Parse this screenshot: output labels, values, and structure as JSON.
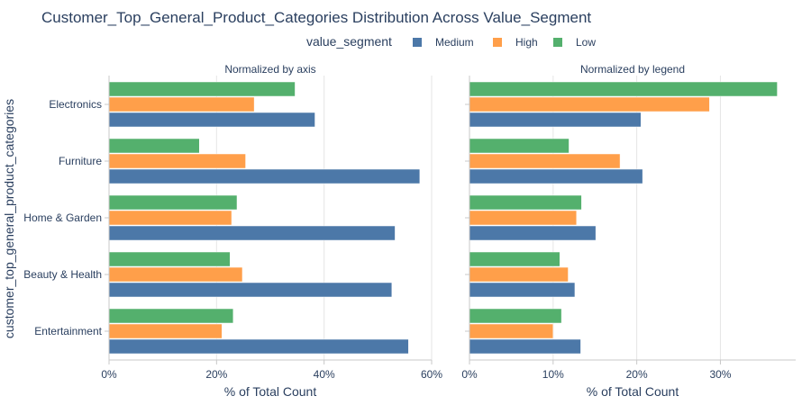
{
  "chart_data": {
    "type": "bar",
    "orientation": "horizontal",
    "title": "Customer_Top_General_Product_Categories Distribution Across Value_Segment",
    "ylabel": "customer_top_general_product_categories",
    "legend": {
      "title": "value_segment",
      "position": "top",
      "entries": [
        {
          "name": "Medium",
          "color": "#4c78a8"
        },
        {
          "name": "High",
          "color": "#ff9f4a"
        },
        {
          "name": "Low",
          "color": "#54b06d"
        }
      ]
    },
    "categories": [
      "Electronics",
      "Furniture",
      "Home & Garden",
      "Beauty & Health",
      "Entertainment"
    ],
    "panels": [
      {
        "subtitle": "Normalized by axis",
        "xlabel": "% of Total Count",
        "xlim": [
          0,
          60
        ],
        "xticks": [
          0,
          20,
          40,
          60
        ],
        "xtick_labels": [
          "0%",
          "20%",
          "40%",
          "60%"
        ],
        "series": [
          {
            "name": "Medium",
            "values": [
              38.3,
              57.8,
              53.2,
              52.6,
              55.7
            ]
          },
          {
            "name": "High",
            "values": [
              27.0,
              25.4,
              22.8,
              24.8,
              21.0
            ]
          },
          {
            "name": "Low",
            "values": [
              34.6,
              16.8,
              23.8,
              22.5,
              23.1
            ]
          }
        ]
      },
      {
        "subtitle": "Normalized by legend",
        "xlabel": "% of Total Count",
        "xlim": [
          0,
          39
        ],
        "xticks": [
          0,
          10,
          20,
          30
        ],
        "xtick_labels": [
          "0%",
          "10%",
          "20%",
          "30%"
        ],
        "series": [
          {
            "name": "Medium",
            "values": [
              20.5,
              20.7,
              15.1,
              12.6,
              13.3
            ]
          },
          {
            "name": "High",
            "values": [
              28.7,
              18.0,
              12.8,
              11.8,
              10.0
            ]
          },
          {
            "name": "Low",
            "values": [
              36.8,
              11.9,
              13.4,
              10.8,
              11.0
            ]
          }
        ]
      }
    ]
  }
}
